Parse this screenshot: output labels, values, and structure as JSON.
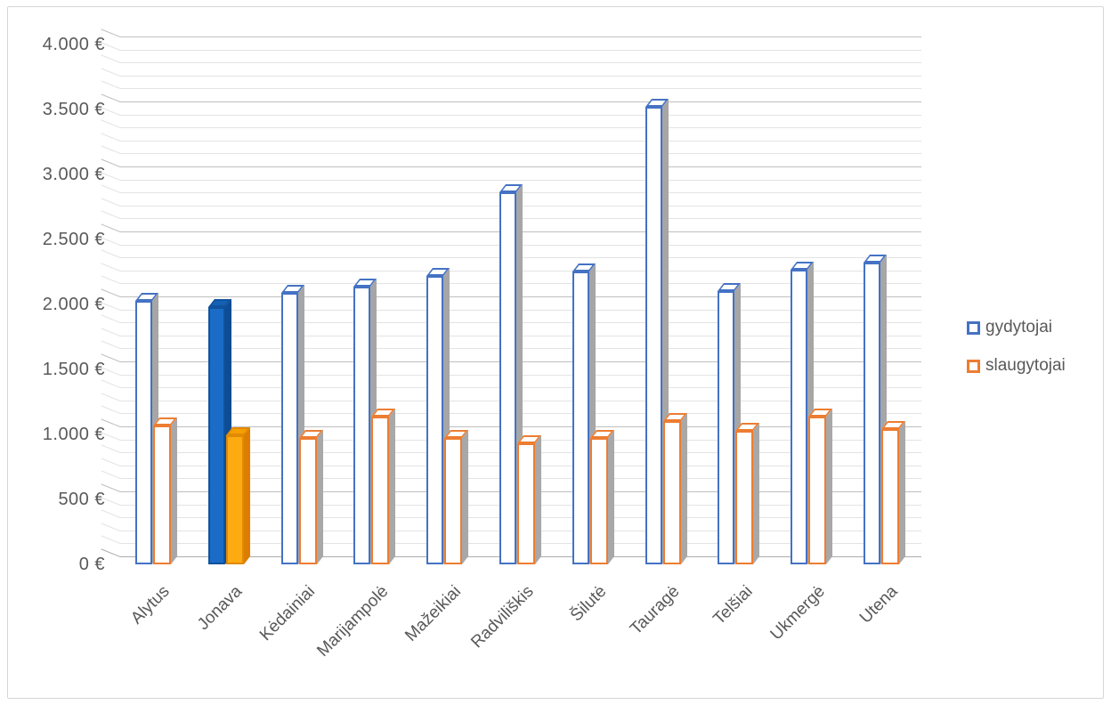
{
  "window": {
    "canvas_border_color": "#d6d6d6",
    "background": "#ffffff"
  },
  "axis": {
    "text_color": "#595959",
    "ytick_labels": [
      "0 €",
      "500 €",
      "1.000 €",
      "1.500 €",
      "2.000 €",
      "2.500 €",
      "3.000 €",
      "3.500 €",
      "4.000 €"
    ],
    "major_grid_color": "#bfbfbf",
    "minor_grid_color": "#e3e3e3",
    "baseline_color": "#adadad"
  },
  "legend": {
    "items": [
      {
        "label": "gydytojai",
        "swatch_color": "#4472c4"
      },
      {
        "label": "slaugytojai",
        "swatch_color": "#ed7d31"
      }
    ]
  },
  "chart_data": {
    "type": "bar",
    "style": "3d-column, outlined white bars with colored borders; highlighted category drawn with solid fill",
    "title": "",
    "xlabel": "",
    "ylabel": "",
    "ylim": [
      0,
      4000
    ],
    "ytick_step": 500,
    "minor_tick_step": 100,
    "grid": true,
    "legend_position": "right",
    "highlighted_category": "Jonava",
    "categories": [
      "Alytus",
      "Jonava",
      "Kėdainiai",
      "Marijampolė",
      "Mažeikiai",
      "Radviliškis",
      "Šilutė",
      "Tauragė",
      "Telšiai",
      "Ukmergė",
      "Utena"
    ],
    "series": [
      {
        "name": "gydytojai",
        "values": [
          2030,
          1980,
          2090,
          2140,
          2220,
          2860,
          2250,
          3520,
          2100,
          2270,
          2320
        ],
        "outline_color": "#4472c4",
        "outlined_fill": "#ffffff",
        "outlined_side_color": "#a6a6a6",
        "solid_front": "#1a6cc6",
        "solid_top": "#1360b4",
        "solid_side": "#0e4c94",
        "solid_border": "#10529e"
      },
      {
        "name": "slaugytojai",
        "values": [
          1070,
          990,
          970,
          1140,
          970,
          930,
          970,
          1100,
          1030,
          1140,
          1040
        ],
        "outline_color": "#ed7d31",
        "outlined_fill": "#ffffff",
        "outlined_side_color": "#a8a8a8",
        "solid_front": "#fdab11",
        "solid_top": "#f79f00",
        "solid_side": "#dd7d00",
        "solid_border": "#e08a06"
      }
    ]
  }
}
